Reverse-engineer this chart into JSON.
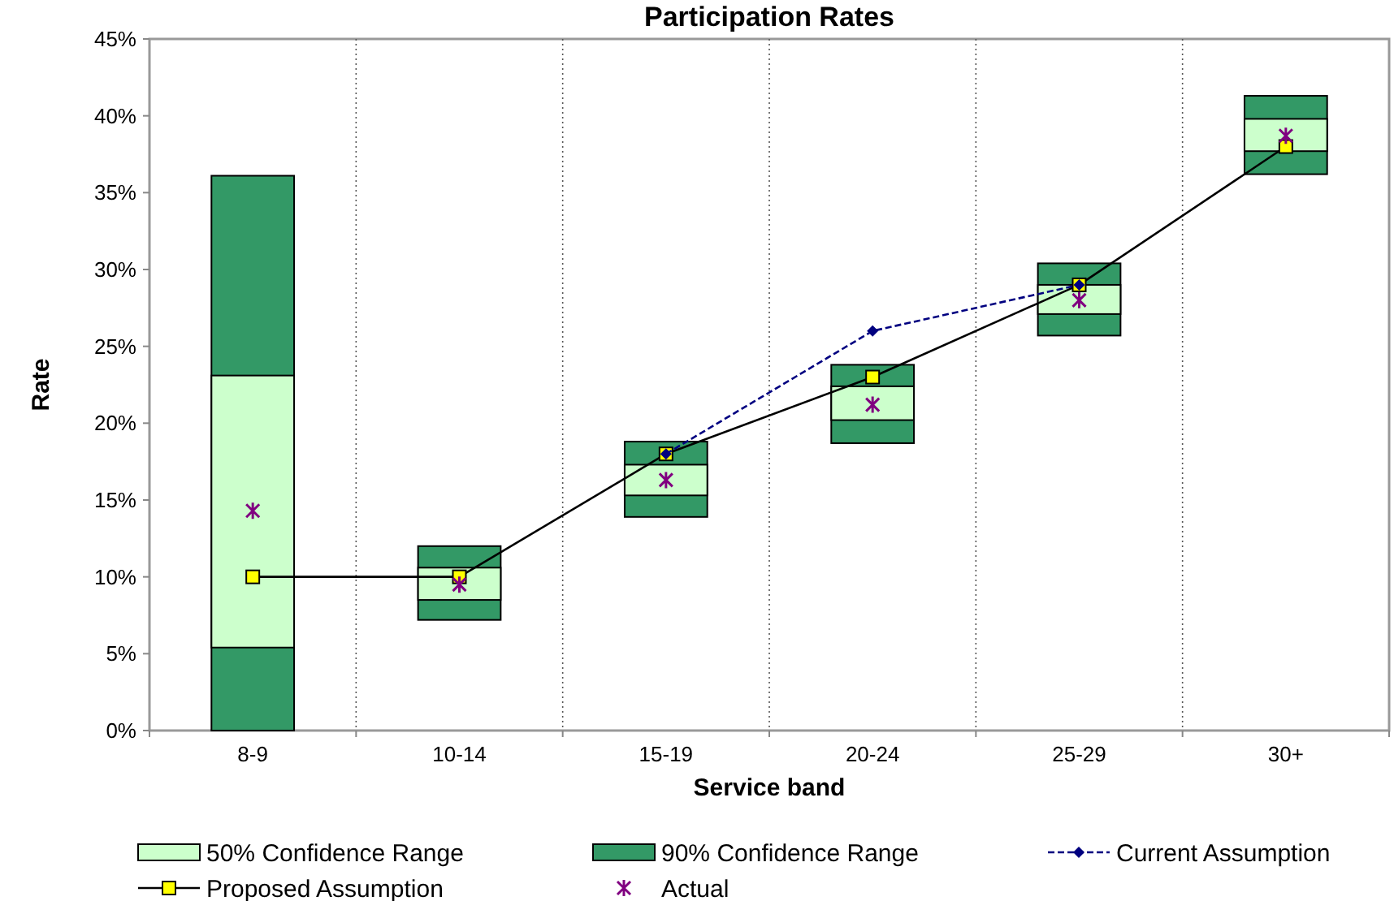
{
  "chart_data": {
    "type": "bar",
    "title": "Participation Rates",
    "xlabel": "Service band",
    "ylabel": "Rate",
    "categories": [
      "8-9",
      "10-14",
      "15-19",
      "20-24",
      "25-29",
      "30+"
    ],
    "series": [
      {
        "name": "50% Confidence Range",
        "color": "#ccffcc",
        "base": [
          5.4,
          8.5,
          15.3,
          20.2,
          27.1,
          37.7
        ],
        "values": [
          17.7,
          2.1,
          2.0,
          2.2,
          1.9,
          2.1
        ]
      },
      {
        "name": "90% Confidence Range",
        "color": "#339966",
        "base": [
          0,
          7.2,
          13.9,
          18.7,
          25.7,
          36.2
        ],
        "values": [
          36.1,
          4.8,
          4.9,
          5.1,
          4.7,
          5.1
        ]
      },
      {
        "name": "Current Assumption",
        "type": "line",
        "color": "#000080",
        "line_style": "dashed",
        "marker": "diamond",
        "values": [
          null,
          null,
          18,
          26,
          29,
          null
        ]
      },
      {
        "name": "Proposed Assumption",
        "type": "line",
        "color": "#000000",
        "line_style": "solid",
        "marker": "square",
        "values": [
          10,
          10,
          18,
          23,
          29,
          38
        ]
      },
      {
        "name": "Actual",
        "type": "scatter",
        "color": "#800080",
        "marker": "cross",
        "values": [
          14.3,
          9.5,
          16.3,
          21.2,
          28.0,
          38.7
        ]
      }
    ],
    "ylim": [
      0,
      45
    ],
    "yticks": [
      {
        "value": 0,
        "label": "0%"
      },
      {
        "value": 5,
        "label": "5%"
      },
      {
        "value": 10,
        "label": "10%"
      },
      {
        "value": 15,
        "label": "15%"
      },
      {
        "value": 20,
        "label": "20%"
      },
      {
        "value": 25,
        "label": "25%"
      },
      {
        "value": 30,
        "label": "30%"
      },
      {
        "value": 35,
        "label": "35%"
      },
      {
        "value": 40,
        "label": "40%"
      },
      {
        "value": 45,
        "label": "45%"
      }
    ],
    "grid": "x",
    "legend": "bottom"
  }
}
